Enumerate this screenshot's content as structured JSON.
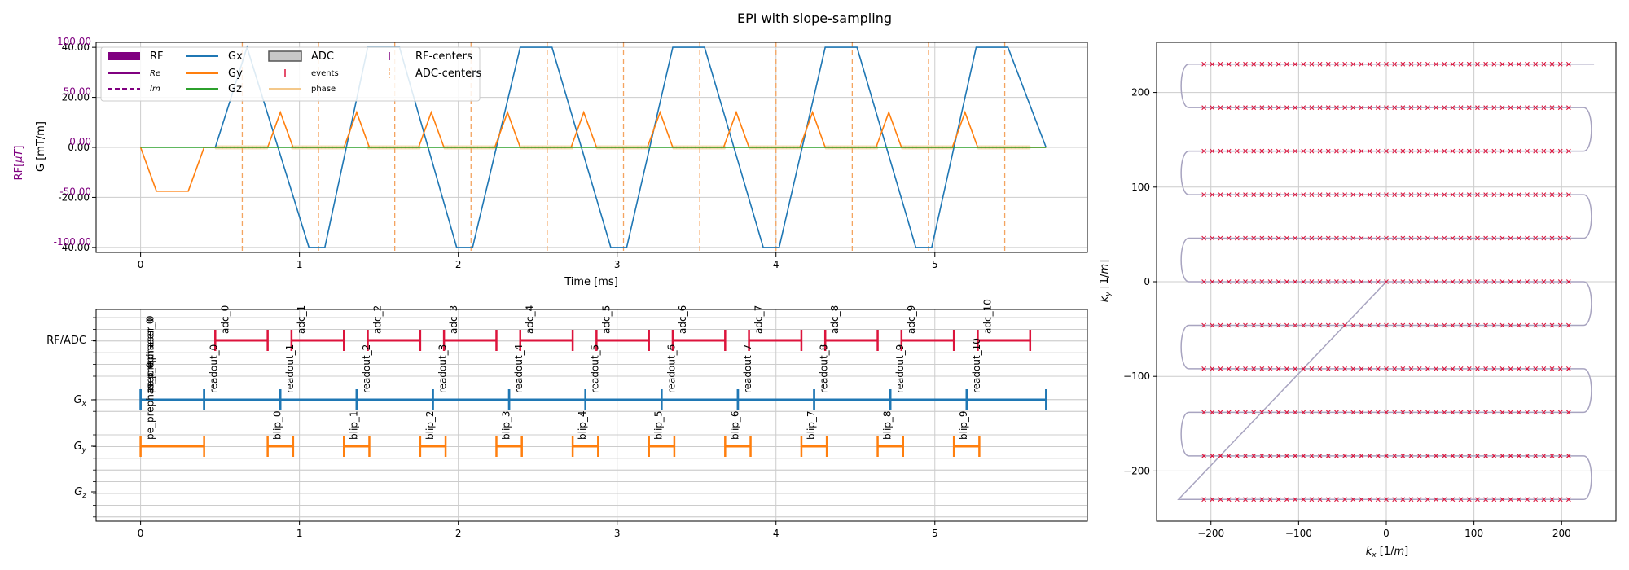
{
  "figure": {
    "title": "EPI with slope-sampling"
  },
  "colors": {
    "rf": "#800080",
    "gx": "#1f77b4",
    "gy": "#ff7f0e",
    "gz": "#2ca02c",
    "adc": "#dc143c",
    "adc_phase": "#f5deb3",
    "adc_center": "#f4a460",
    "traj": "#a8a4c0",
    "grid": "#cccccc"
  },
  "chart_data": [
    {
      "type": "line",
      "id": "waveforms",
      "xlabel": "Time [ms]",
      "ylabel": "G [mT/m]",
      "ylabel_rf": "RF[μT]",
      "xlim": [
        -0.28,
        5.96
      ],
      "ylim": [
        -42,
        42
      ],
      "xticks": [
        0,
        1,
        2,
        3,
        4,
        5
      ],
      "yticks_g": [
        40,
        20,
        0,
        -20,
        -40
      ],
      "ytick_labels_g": [
        "40.00",
        "20.00",
        "0.00",
        "-20.00",
        "-40.00"
      ],
      "yticks_rf": [
        100,
        50,
        0,
        -50,
        -100
      ],
      "ytick_labels_rf": [
        "100.00",
        "50.00",
        "0.00",
        "-50.00",
        "-100.00"
      ],
      "xtick_labels": [
        "0",
        "1",
        "2",
        "3",
        "4",
        "5"
      ],
      "legend": [
        {
          "label": "RF",
          "kind": "thick",
          "color": "#800080"
        },
        {
          "label": "Re",
          "kind": "line",
          "color": "#800080",
          "small": true
        },
        {
          "label": "Im",
          "kind": "dash",
          "color": "#800080",
          "small": true
        },
        {
          "label": "Gx",
          "kind": "line",
          "color": "#1f77b4"
        },
        {
          "label": "Gy",
          "kind": "line",
          "color": "#ff7f0e"
        },
        {
          "label": "Gz",
          "kind": "line",
          "color": "#2ca02c"
        },
        {
          "label": "ADC",
          "kind": "box",
          "color": "#555555"
        },
        {
          "label": "events",
          "kind": "tick",
          "color": "#dc143c",
          "small": true
        },
        {
          "label": "phase",
          "kind": "line",
          "color": "#f4c88a",
          "small": true
        },
        {
          "label": "RF-centers",
          "kind": "tick",
          "color": "#800080"
        },
        {
          "label": "ADC-centers",
          "kind": "vdash",
          "color": "#f4a460"
        }
      ],
      "legend_loc": "upper left",
      "series": [
        {
          "name": "Gx",
          "t": [
            0.47,
            0.67,
            1.06,
            1.11,
            1.16,
            1.43,
            1.63,
            1.99,
            2.04,
            2.09,
            2.39,
            2.59,
            2.96,
            3.01,
            3.06,
            3.35,
            3.55,
            3.92,
            3.97,
            4.02,
            4.31,
            4.51,
            4.88,
            4.93,
            4.98,
            5.26,
            5.46,
            5.7
          ],
          "g": [
            0,
            40,
            -40,
            -40,
            -40,
            40,
            40,
            -40,
            -40,
            -40,
            40,
            40,
            -40,
            -40,
            -40,
            40,
            40,
            -40,
            -40,
            -40,
            40,
            40,
            -40,
            -40,
            -40,
            40,
            40,
            0
          ]
        },
        {
          "name": "Gy",
          "t": [
            0,
            0.1,
            0.3,
            0.4,
            0.8,
            0.88,
            0.96,
            1.28,
            1.36,
            1.44,
            1.75,
            1.83,
            1.91,
            2.23,
            2.31,
            2.39,
            2.71,
            2.79,
            2.87,
            3.19,
            3.27,
            3.35,
            3.67,
            3.75,
            3.83,
            4.15,
            4.23,
            4.31,
            4.63,
            4.71,
            4.79,
            5.11,
            5.19,
            5.27,
            5.7
          ],
          "g": [
            0,
            -17.5,
            -17.5,
            0,
            0,
            14,
            0,
            0,
            14,
            0,
            0,
            14,
            0,
            0,
            14,
            0,
            0,
            14,
            0,
            0,
            14,
            0,
            0,
            14,
            0,
            0,
            14,
            0,
            0,
            14,
            0,
            0,
            14,
            0,
            0
          ]
        },
        {
          "name": "Gz",
          "t": [
            0,
            5.7
          ],
          "g": [
            0,
            0
          ]
        }
      ],
      "adc_windows": [
        [
          0.47,
          0.8
        ],
        [
          0.95,
          1.28
        ],
        [
          1.43,
          1.76
        ],
        [
          1.91,
          2.24
        ],
        [
          2.39,
          2.72
        ],
        [
          2.87,
          3.2
        ],
        [
          3.35,
          3.68
        ],
        [
          3.83,
          4.16
        ],
        [
          4.31,
          4.64
        ],
        [
          4.79,
          5.12
        ],
        [
          5.27,
          5.6
        ]
      ],
      "adc_centers": [
        0.64,
        1.12,
        1.6,
        2.08,
        2.56,
        3.04,
        3.52,
        4.0,
        4.48,
        4.96,
        5.44
      ]
    },
    {
      "type": "timeline",
      "id": "blocks",
      "xlim": [
        -0.28,
        5.96
      ],
      "xticks": [
        0,
        1,
        2,
        3,
        4,
        5
      ],
      "xtick_labels": [
        "0",
        "1",
        "2",
        "3",
        "4",
        "5"
      ],
      "rows": [
        {
          "label": "RF/ADC",
          "color": "#dc143c",
          "events": [
            {
              "name": "adc_0",
              "start": 0.47,
              "end": 0.8
            },
            {
              "name": "adc_1",
              "start": 0.95,
              "end": 1.28
            },
            {
              "name": "adc_2",
              "start": 1.43,
              "end": 1.76
            },
            {
              "name": "adc_3",
              "start": 1.91,
              "end": 2.24
            },
            {
              "name": "adc_4",
              "start": 2.39,
              "end": 2.72
            },
            {
              "name": "adc_5",
              "start": 2.87,
              "end": 3.2
            },
            {
              "name": "adc_6",
              "start": 3.35,
              "end": 3.68
            },
            {
              "name": "adc_7",
              "start": 3.83,
              "end": 4.16
            },
            {
              "name": "adc_8",
              "start": 4.31,
              "end": 4.64
            },
            {
              "name": "adc_9",
              "start": 4.79,
              "end": 5.12
            },
            {
              "name": "adc_10",
              "start": 5.27,
              "end": 5.6
            }
          ]
        },
        {
          "label": "G_x",
          "italic": "G",
          "sub": "x",
          "color": "#1f77b4",
          "events": [
            {
              "name": "pe_prephaser_0",
              "start": 0.0,
              "end": 0.4,
              "label_y": 3.6
            },
            {
              "name": "ro_prephaser_0",
              "start": 0.0,
              "end": 0.4,
              "label_y": 3.1,
              "hide_label": true
            },
            {
              "name": "readout_0",
              "start": 0.4,
              "end": 0.88
            },
            {
              "name": "readout_1",
              "start": 0.88,
              "end": 1.36
            },
            {
              "name": "readout_2",
              "start": 1.36,
              "end": 1.84
            },
            {
              "name": "readout_3",
              "start": 1.84,
              "end": 2.32
            },
            {
              "name": "readout_4",
              "start": 2.32,
              "end": 2.8
            },
            {
              "name": "readout_5",
              "start": 2.8,
              "end": 3.28
            },
            {
              "name": "readout_6",
              "start": 3.28,
              "end": 3.76
            },
            {
              "name": "readout_7",
              "start": 3.76,
              "end": 4.24
            },
            {
              "name": "readout_8",
              "start": 4.24,
              "end": 4.72
            },
            {
              "name": "readout_9",
              "start": 4.72,
              "end": 5.2
            },
            {
              "name": "readout_10",
              "start": 5.2,
              "end": 5.7
            }
          ]
        },
        {
          "label": "G_y",
          "italic": "G",
          "sub": "y",
          "color": "#ff7f0e",
          "events": [
            {
              "name": "pe_prephaser_0",
              "start": 0.0,
              "end": 0.4
            },
            {
              "name": "blip_0",
              "start": 0.8,
              "end": 0.96
            },
            {
              "name": "blip_1",
              "start": 1.28,
              "end": 1.44
            },
            {
              "name": "blip_2",
              "start": 1.76,
              "end": 1.92
            },
            {
              "name": "blip_3",
              "start": 2.24,
              "end": 2.4
            },
            {
              "name": "blip_4",
              "start": 2.72,
              "end": 2.88
            },
            {
              "name": "blip_5",
              "start": 3.2,
              "end": 3.36
            },
            {
              "name": "blip_6",
              "start": 3.68,
              "end": 3.84
            },
            {
              "name": "blip_7",
              "start": 4.16,
              "end": 4.32
            },
            {
              "name": "blip_8",
              "start": 4.64,
              "end": 4.8
            },
            {
              "name": "blip_9",
              "start": 5.12,
              "end": 5.28
            }
          ]
        },
        {
          "label": "G_z",
          "italic": "G",
          "sub": "z",
          "color": "#2ca02c",
          "events": []
        }
      ],
      "ro_prephaser_label": "ro_prephaser_0"
    },
    {
      "type": "scatter",
      "id": "kspace",
      "xlabel": "k_x [1/m]",
      "ylabel": "k_y [1/m]",
      "xlim": [
        -262,
        262
      ],
      "ylim": [
        -253,
        253
      ],
      "xticks": [
        -200,
        -100,
        0,
        100,
        200
      ],
      "yticks": [
        -200,
        -100,
        0,
        100,
        200
      ],
      "xtick_labels": [
        "−200",
        "−100",
        "0",
        "100",
        "200"
      ],
      "ytick_labels": [
        "−200",
        "−100",
        "0",
        "100",
        "200"
      ],
      "line_ky": [
        -230,
        -184,
        -138,
        -92,
        -46,
        0,
        46,
        92,
        138,
        184,
        230
      ],
      "kx_sample_range": [
        -208,
        208
      ],
      "samples_per_line": 45,
      "kx_turn_max": 237,
      "start_point": [
        0,
        0
      ],
      "prephaser_end": [
        -237,
        -230
      ]
    }
  ]
}
